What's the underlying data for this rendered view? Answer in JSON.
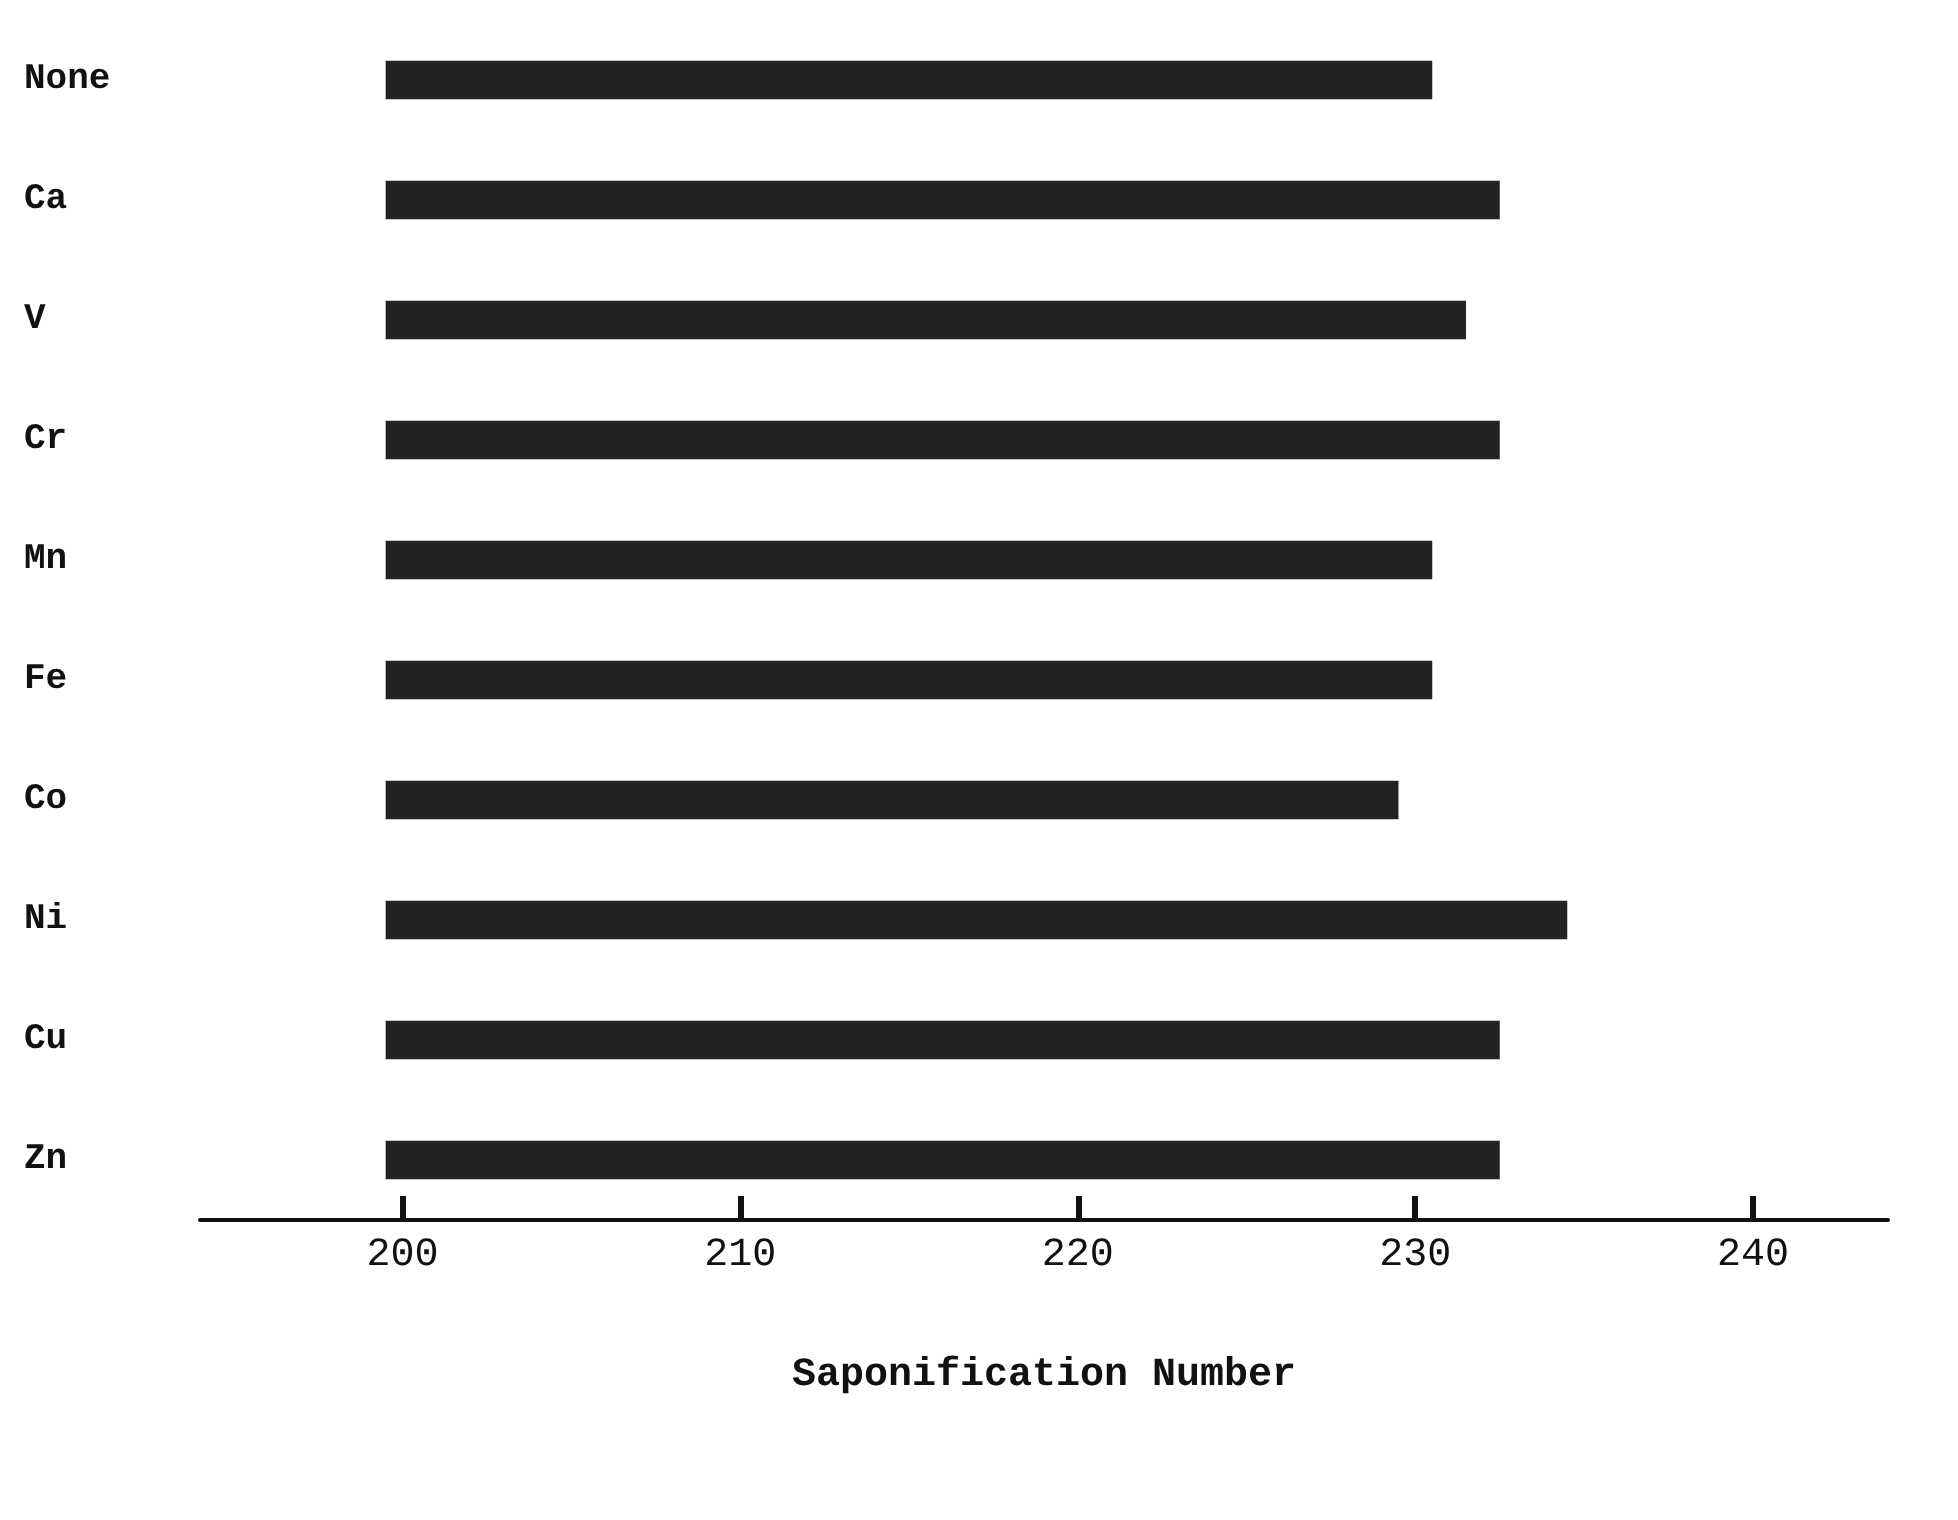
{
  "chart_data": {
    "type": "bar",
    "orientation": "horizontal",
    "xlabel": "Saponification Number",
    "categories": [
      "None",
      "Ca",
      "V",
      "Cr",
      "Mn",
      "Fe",
      "Co",
      "Ni",
      "Cu",
      "Zn"
    ],
    "base": [
      199.5,
      199.5,
      199.5,
      199.5,
      199.5,
      199.5,
      199.5,
      199.5,
      199.5,
      199.5
    ],
    "values": [
      31,
      33,
      32,
      33,
      31,
      31,
      30,
      35,
      33,
      33
    ],
    "color": "#222222",
    "xlim": [
      194,
      244
    ],
    "xticks": [
      200,
      210,
      220,
      230,
      240
    ]
  }
}
